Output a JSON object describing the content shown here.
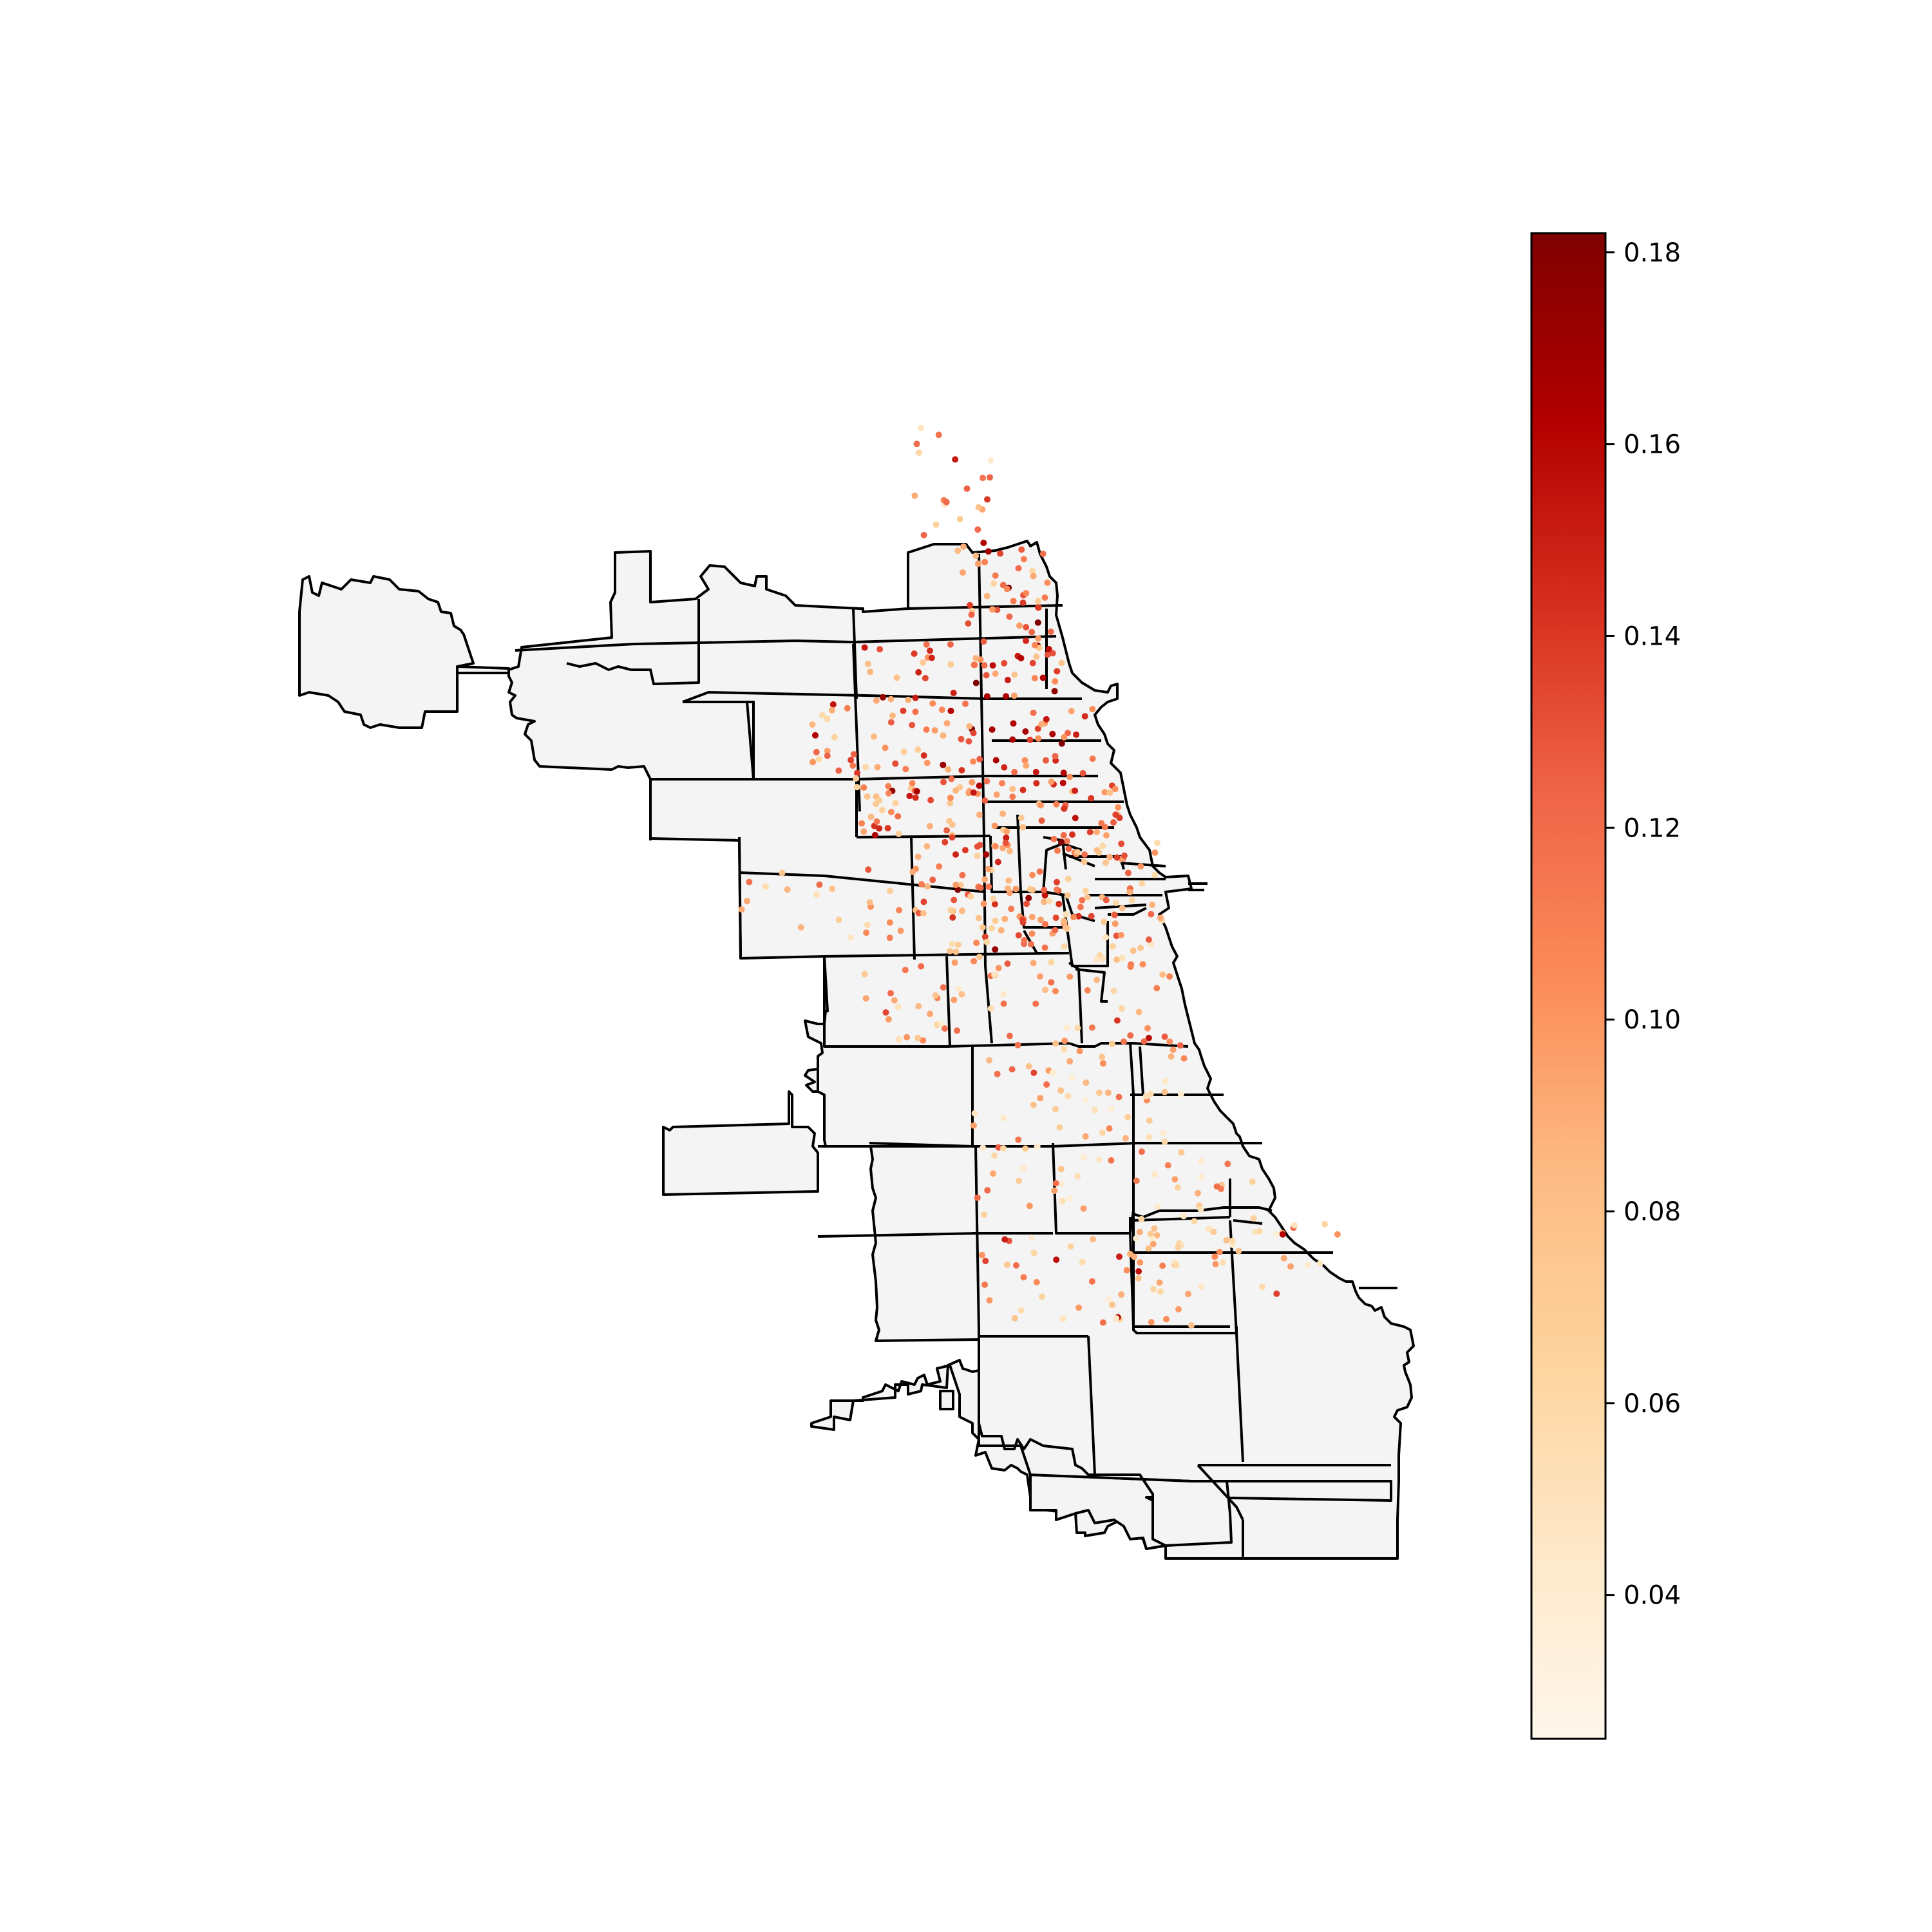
{
  "map": {
    "region": "Chicago",
    "base_fill": "#f4f4f4",
    "boundary_color": "#000000",
    "background": "#ffffff"
  },
  "colorbar": {
    "colormap": "OrRd",
    "orientation": "vertical",
    "placement": "right",
    "vmin": 0.025,
    "vmax": 0.182,
    "ticks": [
      {
        "value": 0.04,
        "label": "0.04"
      },
      {
        "value": 0.06,
        "label": "0.06"
      },
      {
        "value": 0.08,
        "label": "0.08"
      },
      {
        "value": 0.1,
        "label": "0.10"
      },
      {
        "value": 0.12,
        "label": "0.12"
      },
      {
        "value": 0.14,
        "label": "0.14"
      },
      {
        "value": 0.16,
        "label": "0.16"
      },
      {
        "value": 0.18,
        "label": "0.18"
      }
    ],
    "color_stops": [
      "#fff7ec",
      "#fee8c8",
      "#fdd49e",
      "#fdbb84",
      "#fc8d59",
      "#ef6548",
      "#d7301f",
      "#b30000",
      "#7f0000"
    ]
  },
  "chart_data": {
    "type": "scatter",
    "title": "",
    "xlabel": "",
    "ylabel": "",
    "color_range": [
      0.025,
      0.182
    ],
    "grid": false,
    "legend": "colorbar right"
  }
}
